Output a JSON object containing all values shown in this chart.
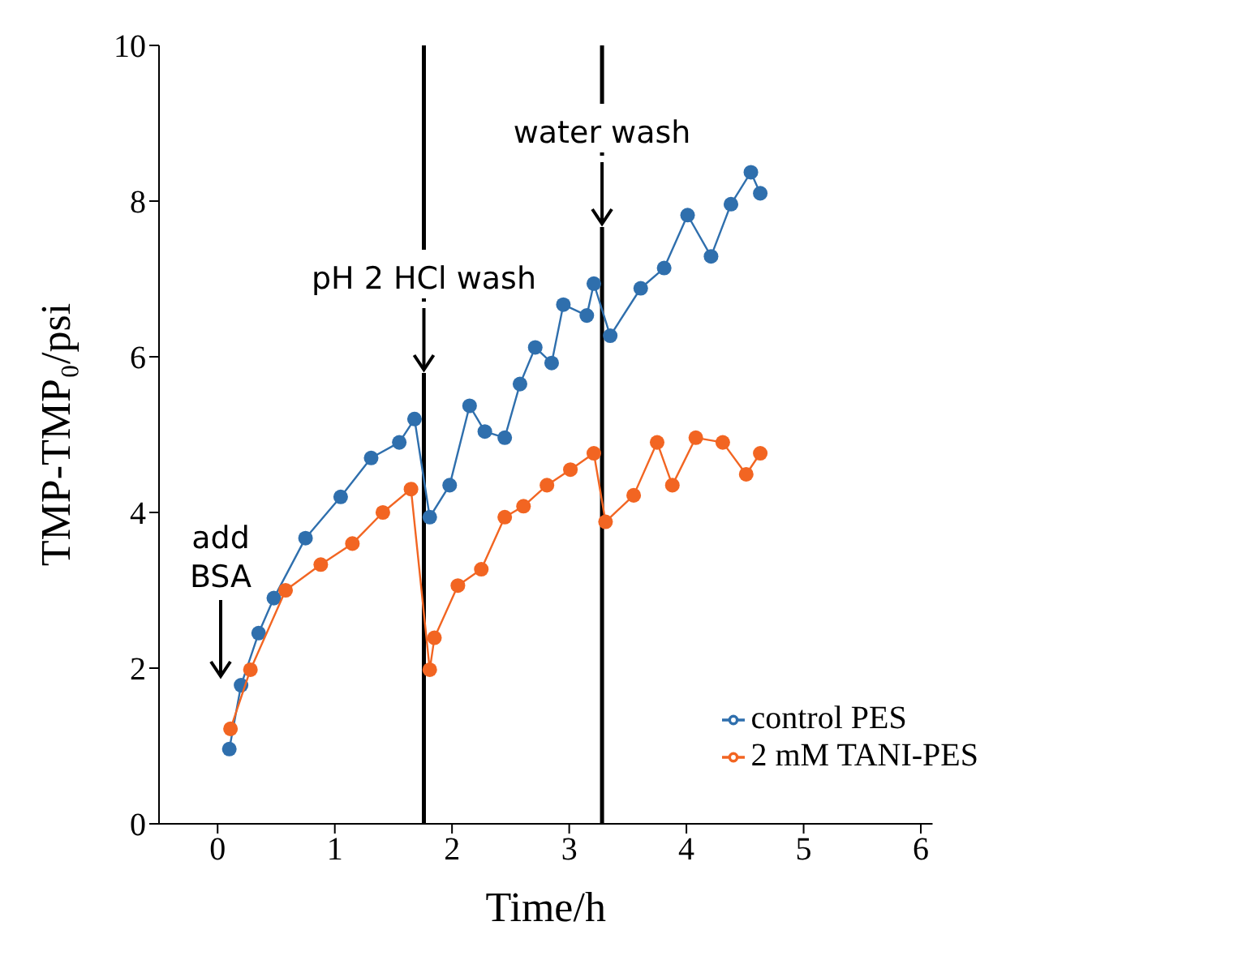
{
  "chart_data": {
    "type": "line",
    "xlabel": "Time/h",
    "ylabel": "TMP-TMP₀/psi",
    "xlim": [
      -0.5,
      6.1
    ],
    "xticks": [
      0,
      1,
      2,
      3,
      4,
      5,
      6
    ],
    "ylim": [
      0,
      10
    ],
    "yticks": [
      0,
      2,
      4,
      6,
      8,
      10
    ],
    "grid": false,
    "legend": "bottom right",
    "marker": "circle",
    "line_style": "solid",
    "series": [
      {
        "name": "control PES",
        "color": "#2f6fad",
        "x": [
          0.1,
          0.2,
          0.35,
          0.48,
          0.75,
          1.05,
          1.31,
          1.55,
          1.68,
          1.81,
          1.98,
          2.15,
          2.28,
          2.45,
          2.58,
          2.71,
          2.85,
          2.95,
          3.15,
          3.21,
          3.35,
          3.61,
          3.81,
          4.01,
          4.21,
          4.38,
          4.55,
          4.63
        ],
        "values": [
          0.96,
          1.78,
          2.45,
          2.9,
          3.67,
          4.2,
          4.7,
          4.9,
          5.2,
          3.94,
          4.35,
          5.37,
          5.04,
          4.96,
          5.65,
          6.12,
          5.92,
          6.67,
          6.53,
          6.94,
          6.27,
          6.88,
          7.14,
          7.82,
          7.29,
          7.96,
          8.37,
          8.1
        ]
      },
      {
        "name": "2 mM TANI-PES",
        "color": "#f26522",
        "x": [
          0.11,
          0.28,
          0.58,
          0.88,
          1.15,
          1.41,
          1.65,
          1.81,
          1.85,
          2.05,
          2.25,
          2.45,
          2.61,
          2.81,
          3.01,
          3.21,
          3.31,
          3.55,
          3.75,
          3.88,
          4.08,
          4.31,
          4.51,
          4.63
        ],
        "values": [
          1.22,
          1.98,
          3.0,
          3.33,
          3.6,
          4.0,
          4.3,
          1.98,
          2.39,
          3.06,
          3.27,
          3.94,
          4.08,
          4.35,
          4.55,
          4.76,
          3.88,
          4.22,
          4.9,
          4.35,
          4.96,
          4.9,
          4.49,
          4.76
        ]
      }
    ],
    "ref_lines": [
      {
        "axis": "x",
        "value": 1.76,
        "color": "#000000",
        "label": "pH 2 HCl wash"
      },
      {
        "axis": "x",
        "value": 3.28,
        "color": "#000000",
        "label": "water wash"
      }
    ],
    "annotations": [
      "add BSA"
    ]
  }
}
